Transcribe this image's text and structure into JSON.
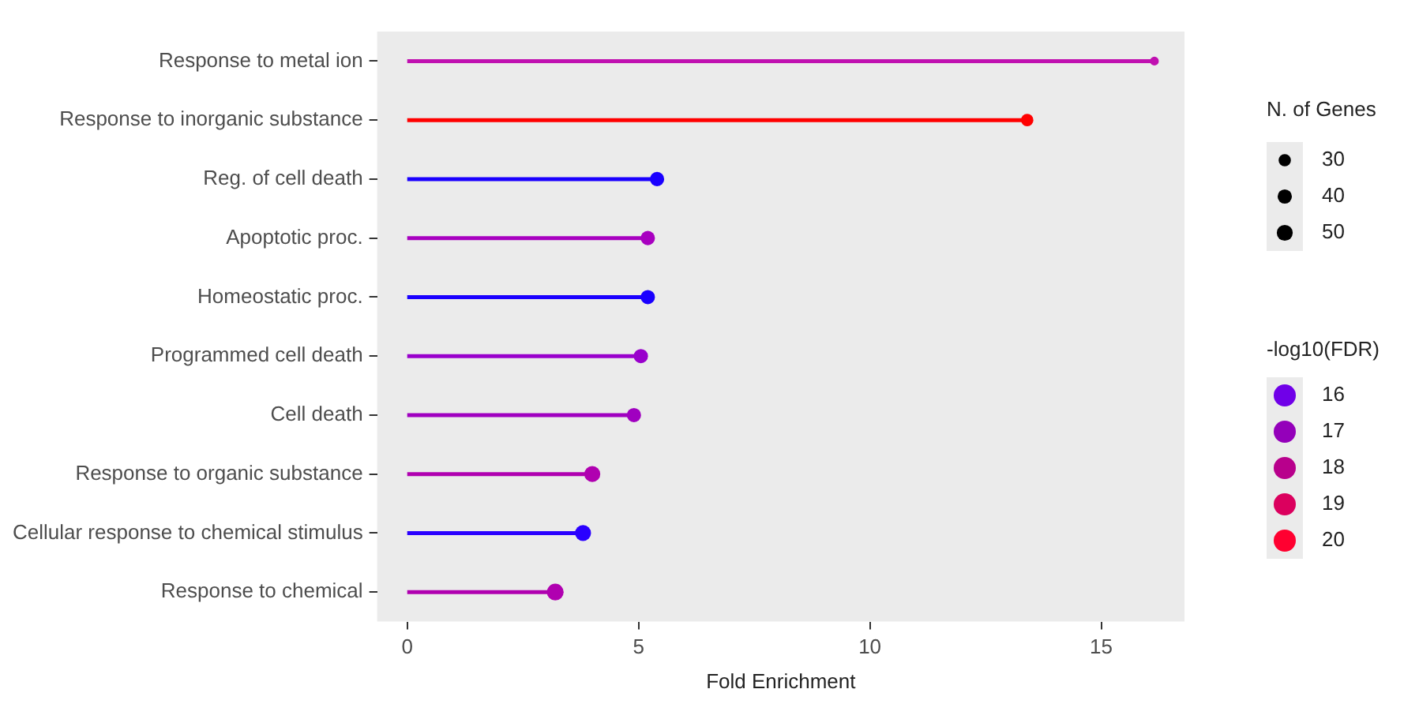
{
  "chart_data": {
    "type": "lollipop",
    "orientation": "horizontal",
    "categories": [
      "Response to metal ion",
      "Response to inorganic substance",
      "Reg. of cell death",
      "Apoptotic proc.",
      "Homeostatic proc.",
      "Programmed cell death",
      "Cell death",
      "Response to organic substance",
      "Cellular response to chemical stimulus",
      "Response to chemical"
    ],
    "values": [
      16.15,
      13.4,
      5.4,
      5.2,
      5.2,
      5.05,
      4.9,
      4.0,
      3.8,
      3.2
    ],
    "sizes": [
      15,
      30,
      40,
      40,
      40,
      40,
      40,
      50,
      50,
      55
    ],
    "size_legend": [
      30,
      40,
      50
    ],
    "legend_title": "N. of Genes",
    "colors": [
      "#c010b0",
      "#ff0000",
      "#1a00ff",
      "#a800c0",
      "#1a00ff",
      "#9900cc",
      "#a000c0",
      "#b000b0",
      "#2a00ff",
      "#b000b0"
    ],
    "cticks": [
      16,
      17,
      18,
      19,
      20
    ],
    "clabel": "-log10(FDR)",
    "xlabel": "Fold Enrichment",
    "xlim": [
      -0.65,
      16.8
    ],
    "xticks": [
      0,
      5,
      10,
      15
    ],
    "grid": false
  }
}
